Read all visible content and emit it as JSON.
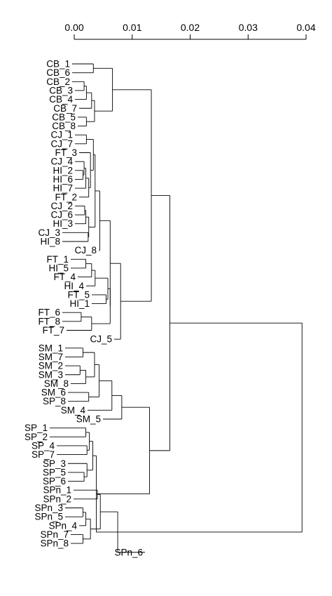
{
  "chart_data": {
    "type": "dendrogram",
    "title": "",
    "xlabel": "",
    "ylabel": "",
    "axis": {
      "position": "top",
      "range": [
        0,
        0.04
      ],
      "ticks": [
        0,
        0.01,
        0.02,
        0.03,
        0.04
      ],
      "tick_labels": [
        "0.00",
        "0.01",
        "0.02",
        "0.03",
        "0.04"
      ]
    },
    "leaves": [
      {
        "id": "CB_1",
        "label": "CB_1",
        "h": 0.0
      },
      {
        "id": "CB_6",
        "label": "CB_6",
        "h": 0.0
      },
      {
        "id": "CB_2",
        "label": "CB_2",
        "h": 0.0
      },
      {
        "id": "CB_3",
        "label": "CB_3",
        "h": 0.0
      },
      {
        "id": "CB_4",
        "label": "CB_4",
        "h": 0.0
      },
      {
        "id": "CB_7",
        "label": "CB_7",
        "h": 0.0
      },
      {
        "id": "CB_5",
        "label": "CB_5",
        "h": 0.0
      },
      {
        "id": "CB_8",
        "label": "CB_8",
        "h": 0.0
      },
      {
        "id": "CJ_1",
        "label": "CJ_1",
        "h": 0.0
      },
      {
        "id": "CJ_7",
        "label": "CJ_7",
        "h": 0.0
      },
      {
        "id": "FT_3",
        "label": "FT_3",
        "h": 0.0
      },
      {
        "id": "CJ_4",
        "label": "CJ_4",
        "h": 0.0
      },
      {
        "id": "HI_2",
        "label": "HI_2",
        "h": 0.0
      },
      {
        "id": "HI_6",
        "label": "HI_6",
        "h": 0.0
      },
      {
        "id": "HI_7",
        "label": "HI_7",
        "h": 0.0
      },
      {
        "id": "FT_2",
        "label": "FT_2",
        "h": 0.0
      },
      {
        "id": "CJ_2",
        "label": "CJ_2",
        "h": 0.0
      },
      {
        "id": "CJ_6",
        "label": "CJ_6",
        "h": 0.0
      },
      {
        "id": "HI_3",
        "label": "HI_3",
        "h": 0.0
      },
      {
        "id": "CJ_3",
        "label": "CJ_3",
        "h": 0.0
      },
      {
        "id": "HI_8",
        "label": "HI_8",
        "h": 0.0
      },
      {
        "id": "CJ_8",
        "label": "CJ_8",
        "h": 0.0
      },
      {
        "id": "FT_1",
        "label": "FT_1",
        "h": 0.0
      },
      {
        "id": "HI_5",
        "label": "HI_5",
        "h": 0.0
      },
      {
        "id": "FT_4",
        "label": "FT_4",
        "h": 0.0
      },
      {
        "id": "HI_4",
        "label": "HI_4",
        "h": 0.0
      },
      {
        "id": "FT_5",
        "label": "FT_5",
        "h": 0.0
      },
      {
        "id": "HI_1",
        "label": "HI_1",
        "h": 0.0
      },
      {
        "id": "FT_6",
        "label": "FT_6",
        "h": 0.0
      },
      {
        "id": "FT_8",
        "label": "FT_8",
        "h": 0.0
      },
      {
        "id": "FT_7",
        "label": "FT_7",
        "h": 0.0
      },
      {
        "id": "CJ_5",
        "label": "CJ_5",
        "h": 0.0
      },
      {
        "id": "SM_1",
        "label": "SM_1",
        "h": 0.0
      },
      {
        "id": "SM_7",
        "label": "SM_7",
        "h": 0.0
      },
      {
        "id": "SM_2",
        "label": "SM_2",
        "h": 0.0
      },
      {
        "id": "SM_3",
        "label": "SM_3",
        "h": 0.0
      },
      {
        "id": "SM_8",
        "label": "SM_8",
        "h": 0.0
      },
      {
        "id": "SM_6",
        "label": "SM_6",
        "h": 0.0
      },
      {
        "id": "SP_8",
        "label": "SP_8",
        "h": 0.0
      },
      {
        "id": "SM_4",
        "label": "SM_4",
        "h": 0.0
      },
      {
        "id": "SM_5",
        "label": "SM_5",
        "h": 0.0
      },
      {
        "id": "SP_1",
        "label": "SP_1",
        "h": 0.0
      },
      {
        "id": "SP_2",
        "label": "SP_2",
        "h": 0.0
      },
      {
        "id": "SP_4",
        "label": "SP_4",
        "h": 0.0
      },
      {
        "id": "SP_7",
        "label": "SP_7",
        "h": 0.0
      },
      {
        "id": "SP_3",
        "label": "SP_3",
        "h": 0.0
      },
      {
        "id": "SP_5",
        "label": "SP_5",
        "h": 0.0
      },
      {
        "id": "SP_6",
        "label": "SP_6",
        "h": 0.0
      },
      {
        "id": "SPn_1",
        "label": "SPn_1",
        "h": 0.0
      },
      {
        "id": "SPn_2",
        "label": "SPn_2",
        "h": 0.0
      },
      {
        "id": "SPn_3",
        "label": "SPn_3",
        "h": 0.0
      },
      {
        "id": "SPn_5",
        "label": "SPn_5",
        "h": 0.0
      },
      {
        "id": "SPn_4",
        "label": "SPn_4",
        "h": 0.0
      },
      {
        "id": "SPn_7",
        "label": "SPn_7",
        "h": 0.0
      },
      {
        "id": "SPn_8",
        "label": "SPn_8",
        "h": 0.0
      },
      {
        "id": "SPn_6",
        "label": "SPn_6",
        "h": 0.0
      }
    ],
    "merges": [
      {
        "id": "n1",
        "h": 0.0033,
        "children": [
          "CB_1",
          "CB_6"
        ]
      },
      {
        "id": "n2",
        "h": 0.0017,
        "children": [
          "CB_2",
          "CB_3"
        ]
      },
      {
        "id": "n3",
        "h": 0.0021,
        "children": [
          "n2",
          "CB_4"
        ]
      },
      {
        "id": "n4",
        "h": 0.003,
        "children": [
          "n3",
          "CB_7"
        ]
      },
      {
        "id": "n5",
        "h": 0.0021,
        "children": [
          "CB_5",
          "CB_8"
        ]
      },
      {
        "id": "n6",
        "h": 0.0035,
        "children": [
          "n4",
          "n5"
        ]
      },
      {
        "id": "n7",
        "h": 0.0066,
        "children": [
          "n1",
          "n6"
        ]
      },
      {
        "id": "n8",
        "h": 0.0021,
        "children": [
          "CJ_1",
          "CJ_7"
        ]
      },
      {
        "id": "n9",
        "h": 0.0015,
        "children": [
          "HI_2",
          "HI_6"
        ]
      },
      {
        "id": "n10",
        "h": 0.0017,
        "children": [
          "CJ_4",
          "n9"
        ]
      },
      {
        "id": "n11",
        "h": 0.002,
        "children": [
          "n10",
          "HI_7"
        ]
      },
      {
        "id": "n12",
        "h": 0.0025,
        "children": [
          "n11",
          "FT_2"
        ]
      },
      {
        "id": "n13",
        "h": 0.0028,
        "children": [
          "FT_3",
          "n12"
        ]
      },
      {
        "id": "n14",
        "h": 0.0033,
        "children": [
          "n8",
          "n13"
        ]
      },
      {
        "id": "n15",
        "h": 0.0018,
        "children": [
          "CJ_2",
          "CJ_6"
        ]
      },
      {
        "id": "n16",
        "h": 0.002,
        "children": [
          "n15",
          "HI_3"
        ]
      },
      {
        "id": "n17",
        "h": 0.0024,
        "children": [
          "CJ_3",
          "HI_8"
        ]
      },
      {
        "id": "n18",
        "h": 0.0025,
        "children": [
          "n16",
          "n17"
        ]
      },
      {
        "id": "n19",
        "h": 0.0036,
        "children": [
          "n14",
          "n18"
        ]
      },
      {
        "id": "n20",
        "h": 0.0044,
        "children": [
          "n19",
          "CJ_8"
        ]
      },
      {
        "id": "n21",
        "h": 0.002,
        "children": [
          "FT_1",
          "HI_5"
        ]
      },
      {
        "id": "n22",
        "h": 0.003,
        "children": [
          "n21",
          "FT_4"
        ]
      },
      {
        "id": "n23",
        "h": 0.0036,
        "children": [
          "n22",
          "HI_4"
        ]
      },
      {
        "id": "n24",
        "h": 0.0055,
        "children": [
          "FT_5",
          "HI_1"
        ]
      },
      {
        "id": "n25",
        "h": 0.0058,
        "children": [
          "n23",
          "n24"
        ]
      },
      {
        "id": "n26",
        "h": 0.0012,
        "children": [
          "FT_6",
          "FT_8"
        ]
      },
      {
        "id": "n27",
        "h": 0.003,
        "children": [
          "n26",
          "FT_7"
        ]
      },
      {
        "id": "n28",
        "h": 0.0062,
        "children": [
          "n25",
          "n27"
        ]
      },
      {
        "id": "n29",
        "h": 0.0062,
        "children": [
          "n20",
          "n28"
        ]
      },
      {
        "id": "n30",
        "h": 0.008,
        "children": [
          "n29",
          "CJ_5"
        ]
      },
      {
        "id": "n31",
        "h": 0.0133,
        "children": [
          "n7",
          "n30"
        ]
      },
      {
        "id": "n32",
        "h": 0.0015,
        "children": [
          "SM_1",
          "SM_7"
        ]
      },
      {
        "id": "n33",
        "h": 0.001,
        "children": [
          "SM_2",
          "SM_3"
        ]
      },
      {
        "id": "n34",
        "h": 0.002,
        "children": [
          "n33",
          "SM_8"
        ]
      },
      {
        "id": "n35",
        "h": 0.0035,
        "children": [
          "n32",
          "n34"
        ]
      },
      {
        "id": "n36",
        "h": 0.0025,
        "children": [
          "SM_6",
          "SP_8"
        ]
      },
      {
        "id": "n37",
        "h": 0.0043,
        "children": [
          "n35",
          "n36"
        ]
      },
      {
        "id": "n38",
        "h": 0.0065,
        "children": [
          "n37",
          "SM_4"
        ]
      },
      {
        "id": "n39",
        "h": 0.0082,
        "children": [
          "n38",
          "SM_5"
        ]
      },
      {
        "id": "n40",
        "h": 0.002,
        "children": [
          "SP_1",
          "SP_2"
        ]
      },
      {
        "id": "n41",
        "h": 0.0022,
        "children": [
          "SP_4",
          "SP_7"
        ]
      },
      {
        "id": "n42",
        "h": 0.0026,
        "children": [
          "n40",
          "n41"
        ]
      },
      {
        "id": "n43",
        "h": 0.0017,
        "children": [
          "SP_5",
          "SP_6"
        ]
      },
      {
        "id": "n44",
        "h": 0.0022,
        "children": [
          "SP_3",
          "n43"
        ]
      },
      {
        "id": "n45",
        "h": 0.0032,
        "children": [
          "n42",
          "n44"
        ]
      },
      {
        "id": "n46",
        "h": 0.004,
        "children": [
          "SPn_1",
          "SPn_2"
        ]
      },
      {
        "id": "n47",
        "h": 0.0015,
        "children": [
          "SPn_3",
          "SPn_5"
        ]
      },
      {
        "id": "n48",
        "h": 0.002,
        "children": [
          "n47",
          "SPn_4"
        ]
      },
      {
        "id": "n49",
        "h": 0.0015,
        "children": [
          "SPn_7",
          "SPn_8"
        ]
      },
      {
        "id": "n50",
        "h": 0.0028,
        "children": [
          "n48",
          "n49"
        ]
      },
      {
        "id": "n51",
        "h": 0.0045,
        "children": [
          "n46",
          "n50"
        ]
      },
      {
        "id": "n52",
        "h": 0.0075,
        "children": [
          "n51",
          "SPn_6"
        ]
      },
      {
        "id": "n53",
        "h": 0.0038,
        "children": [
          "n45",
          "n52"
        ]
      },
      {
        "id": "n54",
        "h": 0.013,
        "children": [
          "n39",
          "n53"
        ]
      },
      {
        "id": "n55",
        "h": 0.0165,
        "children": [
          "n31",
          "n54"
        ]
      },
      {
        "id": "n56",
        "h": 0.0393,
        "children": [
          "n55",
          "SPn_6_root"
        ]
      }
    ],
    "root_merge_note_free": true
  }
}
